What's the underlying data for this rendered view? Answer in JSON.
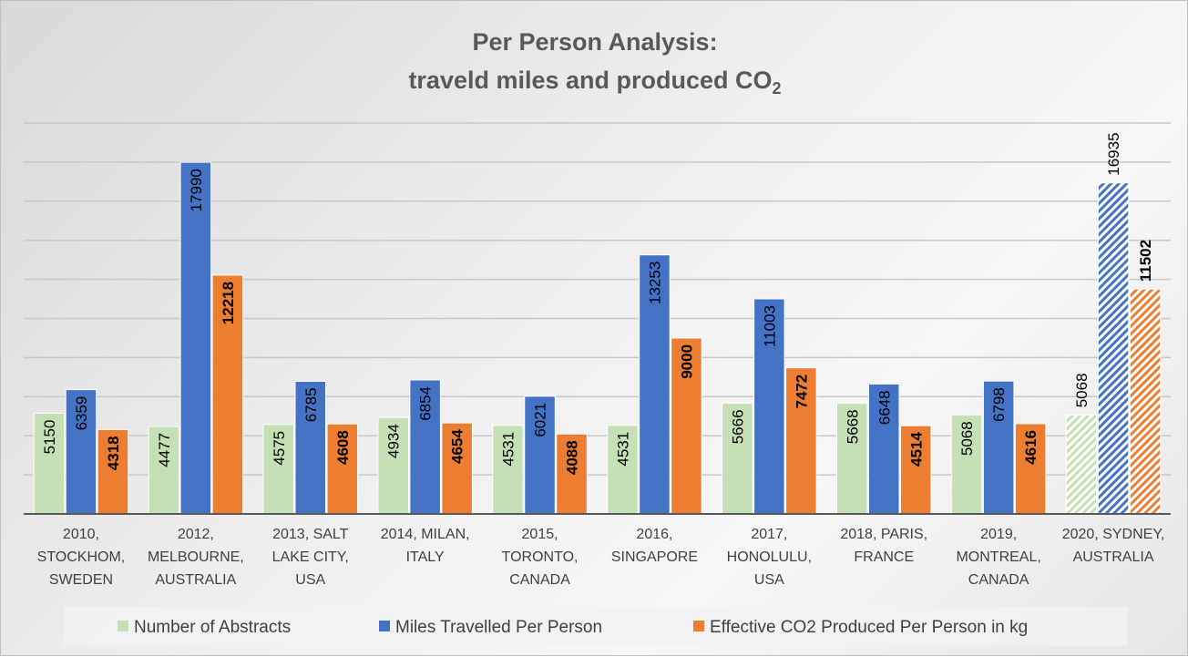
{
  "chart_data": {
    "type": "bar",
    "title_line1": "Per Person Analysis:",
    "title_line2": "traveld miles and produced CO",
    "title_subscript": "2",
    "categories": [
      [
        "2010,",
        "STOCKHOM,",
        "SWEDEN"
      ],
      [
        "2012,",
        "MELBOURNE,",
        "AUSTRALIA"
      ],
      [
        "2013, SALT",
        "LAKE CITY,",
        "USA"
      ],
      [
        "2014, MILAN,",
        "ITALY"
      ],
      [
        "2015,",
        "TORONTO,",
        "CANADA"
      ],
      [
        "2016,",
        "SINGAPORE"
      ],
      [
        "2017,",
        "HONOLULU,",
        "USA"
      ],
      [
        "2018, PARIS,",
        "FRANCE"
      ],
      [
        "2019,",
        "MONTREAL,",
        "CANADA"
      ],
      [
        "2020, SYDNEY,",
        "AUSTRALIA"
      ]
    ],
    "series": [
      {
        "name": "Number of Abstracts",
        "color": "#C5E0B4",
        "bold_labels": false,
        "values": [
          5150,
          4477,
          4575,
          4934,
          4531,
          4531,
          5666,
          5668,
          5068,
          5068
        ]
      },
      {
        "name": "Miles Travelled Per Person",
        "color": "#4472C4",
        "bold_labels": false,
        "values": [
          6359,
          17990,
          6785,
          6854,
          6021,
          13253,
          11003,
          6648,
          6798,
          16935
        ]
      },
      {
        "name": "Effective CO2 Produced Per Person in kg",
        "color": "#ED7D31",
        "bold_labels": true,
        "values": [
          4318,
          12218,
          4608,
          4654,
          4088,
          9000,
          7472,
          4514,
          4616,
          11502
        ]
      }
    ],
    "hatched_category": "2020, SYDNEY, AUSTRALIA",
    "ylim": [
      0,
      20000
    ],
    "grid_step": 2000,
    "grid": true,
    "y_axis_labels_shown": false,
    "legend_position": "bottom"
  }
}
